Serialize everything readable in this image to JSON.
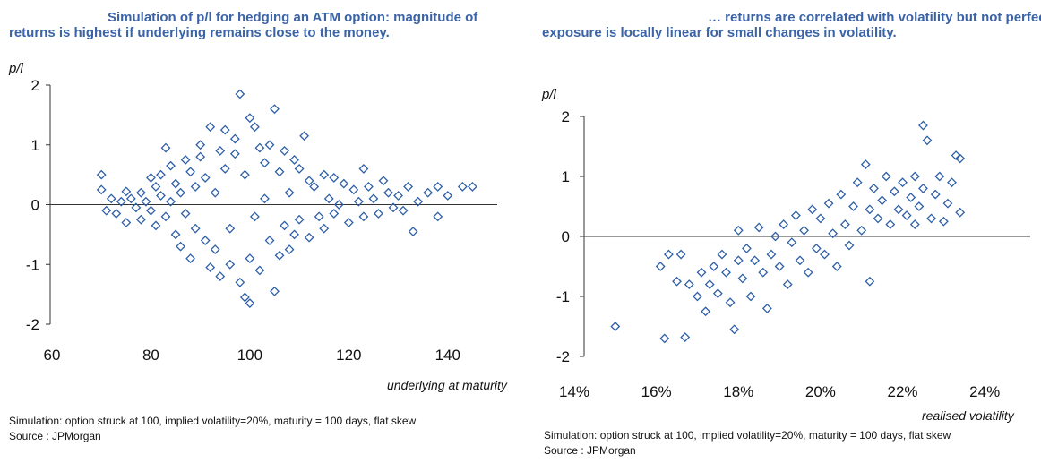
{
  "colors": {
    "title": "#3a63a8",
    "marker": "#2e5fa7",
    "axis": "#333333"
  },
  "panels": [
    {
      "title_line1": "Simulation of p/l for hedging an ATM option: magnitude of",
      "title_line2": "returns is highest if underlying remains close to the money.",
      "note_line1": "Simulation: option struck at 100, implied volatility=20%, maturity = 100 days, flat skew",
      "note_line2": "Source : JPMorgan"
    },
    {
      "title_line1": "… returns are correlated with volatility but not perfectly,",
      "title_line2": "exposure is locally linear for small changes in volatility.",
      "note_line1": "Simulation: option struck at 100, implied volatility=20%, maturity = 100 days, flat skew",
      "note_line2": "Source : JPMorgan"
    }
  ],
  "chart_data": [
    {
      "type": "scatter",
      "title": "Simulation of p/l for hedging an ATM option: magnitude of returns is highest if underlying remains close to the money.",
      "xlabel": "underlying at maturity",
      "ylabel": "p/l",
      "xlim": [
        60,
        150
      ],
      "ylim": [
        -2,
        2
      ],
      "xticks": [
        "60",
        "80",
        "100",
        "120",
        "140"
      ],
      "yticks": [
        "2",
        "1",
        "0",
        "-1",
        "-2"
      ],
      "marker": "hollow-diamond",
      "points": [
        [
          70,
          0.5
        ],
        [
          70,
          0.25
        ],
        [
          71,
          -0.1
        ],
        [
          72,
          0.1
        ],
        [
          73,
          -0.15
        ],
        [
          74,
          0.05
        ],
        [
          75,
          0.22
        ],
        [
          75,
          -0.3
        ],
        [
          76,
          0.1
        ],
        [
          77,
          -0.05
        ],
        [
          78,
          0.2
        ],
        [
          78,
          -0.25
        ],
        [
          79,
          0.05
        ],
        [
          80,
          0.45
        ],
        [
          80,
          -0.1
        ],
        [
          81,
          0.3
        ],
        [
          81,
          -0.35
        ],
        [
          82,
          0.15
        ],
        [
          82,
          0.5
        ],
        [
          83,
          -0.2
        ],
        [
          83,
          0.95
        ],
        [
          84,
          0.05
        ],
        [
          84,
          0.65
        ],
        [
          85,
          -0.5
        ],
        [
          85,
          0.35
        ],
        [
          86,
          0.2
        ],
        [
          86,
          -0.7
        ],
        [
          87,
          0.75
        ],
        [
          87,
          -0.15
        ],
        [
          88,
          0.55
        ],
        [
          88,
          -0.9
        ],
        [
          89,
          0.3
        ],
        [
          89,
          -0.4
        ],
        [
          90,
          0.8
        ],
        [
          90,
          1.0
        ],
        [
          91,
          -0.6
        ],
        [
          91,
          0.45
        ],
        [
          92,
          -1.05
        ],
        [
          92,
          1.3
        ],
        [
          93,
          0.2
        ],
        [
          93,
          -0.75
        ],
        [
          94,
          0.9
        ],
        [
          94,
          -1.2
        ],
        [
          95,
          0.6
        ],
        [
          95,
          1.25
        ],
        [
          96,
          -0.4
        ],
        [
          96,
          -1.0
        ],
        [
          97,
          0.85
        ],
        [
          97,
          1.1
        ],
        [
          98,
          1.85
        ],
        [
          98,
          -1.3
        ],
        [
          99,
          -1.55
        ],
        [
          99,
          0.5
        ],
        [
          100,
          -1.65
        ],
        [
          100,
          1.45
        ],
        [
          100,
          -0.9
        ],
        [
          101,
          1.3
        ],
        [
          101,
          -0.2
        ],
        [
          102,
          0.95
        ],
        [
          102,
          -1.1
        ],
        [
          103,
          0.7
        ],
        [
          103,
          0.1
        ],
        [
          104,
          -0.6
        ],
        [
          104,
          1.0
        ],
        [
          105,
          1.6
        ],
        [
          105,
          -1.45
        ],
        [
          106,
          -0.85
        ],
        [
          106,
          0.55
        ],
        [
          107,
          0.9
        ],
        [
          107,
          -0.35
        ],
        [
          108,
          0.2
        ],
        [
          108,
          -0.75
        ],
        [
          109,
          0.75
        ],
        [
          109,
          -0.5
        ],
        [
          110,
          0.6
        ],
        [
          110,
          -0.25
        ],
        [
          111,
          1.15
        ],
        [
          112,
          0.4
        ],
        [
          112,
          -0.55
        ],
        [
          113,
          0.3
        ],
        [
          114,
          -0.2
        ],
        [
          115,
          0.5
        ],
        [
          115,
          -0.4
        ],
        [
          116,
          0.1
        ],
        [
          117,
          0.45
        ],
        [
          117,
          -0.15
        ],
        [
          118,
          0.0
        ],
        [
          119,
          0.35
        ],
        [
          120,
          -0.3
        ],
        [
          121,
          0.25
        ],
        [
          122,
          0.05
        ],
        [
          123,
          0.6
        ],
        [
          123,
          -0.2
        ],
        [
          124,
          0.3
        ],
        [
          125,
          0.1
        ],
        [
          126,
          -0.15
        ],
        [
          127,
          0.4
        ],
        [
          128,
          0.2
        ],
        [
          129,
          -0.05
        ],
        [
          130,
          0.15
        ],
        [
          131,
          -0.1
        ],
        [
          132,
          0.3
        ],
        [
          133,
          -0.45
        ],
        [
          134,
          0.05
        ],
        [
          136,
          0.2
        ],
        [
          138,
          0.3
        ],
        [
          138,
          -0.2
        ],
        [
          140,
          0.15
        ],
        [
          143,
          0.3
        ],
        [
          145,
          0.3
        ]
      ]
    },
    {
      "type": "scatter",
      "title": "… returns are correlated with volatility but not perfectly, exposure is locally linear for small changes in volatility.",
      "xlabel": "realised volatility",
      "ylabel": "p/l",
      "xlim": [
        14,
        25
      ],
      "ylim": [
        -2,
        2
      ],
      "xticks": [
        "14%",
        "16%",
        "18%",
        "20%",
        "22%",
        "24%"
      ],
      "yticks": [
        "2",
        "1",
        "0",
        "-1",
        "-2"
      ],
      "marker": "hollow-diamond",
      "points": [
        [
          15.0,
          -1.5
        ],
        [
          16.2,
          -1.7
        ],
        [
          16.7,
          -1.68
        ],
        [
          16.1,
          -0.5
        ],
        [
          16.3,
          -0.3
        ],
        [
          16.5,
          -0.75
        ],
        [
          16.6,
          -0.3
        ],
        [
          16.8,
          -0.8
        ],
        [
          17.0,
          -1.0
        ],
        [
          17.1,
          -0.6
        ],
        [
          17.2,
          -1.25
        ],
        [
          17.3,
          -0.8
        ],
        [
          17.4,
          -0.5
        ],
        [
          17.5,
          -0.95
        ],
        [
          17.6,
          -0.3
        ],
        [
          17.7,
          -0.6
        ],
        [
          17.8,
          -1.1
        ],
        [
          17.9,
          -1.55
        ],
        [
          18.0,
          0.1
        ],
        [
          18.0,
          -0.4
        ],
        [
          18.1,
          -0.7
        ],
        [
          18.2,
          -0.2
        ],
        [
          18.3,
          -1.0
        ],
        [
          18.4,
          -0.4
        ],
        [
          18.5,
          0.15
        ],
        [
          18.6,
          -0.6
        ],
        [
          18.7,
          -1.2
        ],
        [
          18.8,
          -0.3
        ],
        [
          18.9,
          0.0
        ],
        [
          19.0,
          -0.5
        ],
        [
          19.1,
          0.2
        ],
        [
          19.2,
          -0.8
        ],
        [
          19.3,
          -0.1
        ],
        [
          19.4,
          0.35
        ],
        [
          19.5,
          -0.4
        ],
        [
          19.6,
          0.1
        ],
        [
          19.7,
          -0.6
        ],
        [
          19.8,
          0.45
        ],
        [
          19.9,
          -0.2
        ],
        [
          20.0,
          0.3
        ],
        [
          20.1,
          -0.3
        ],
        [
          20.2,
          0.55
        ],
        [
          20.3,
          0.05
        ],
        [
          20.4,
          -0.5
        ],
        [
          20.5,
          0.7
        ],
        [
          20.6,
          0.2
        ],
        [
          20.7,
          -0.15
        ],
        [
          20.8,
          0.5
        ],
        [
          20.9,
          0.9
        ],
        [
          21.0,
          0.1
        ],
        [
          21.1,
          1.2
        ],
        [
          21.2,
          -0.75
        ],
        [
          21.2,
          0.45
        ],
        [
          21.3,
          0.8
        ],
        [
          21.4,
          0.3
        ],
        [
          21.5,
          0.6
        ],
        [
          21.6,
          1.0
        ],
        [
          21.7,
          0.2
        ],
        [
          21.8,
          0.75
        ],
        [
          21.9,
          0.45
        ],
        [
          22.0,
          0.9
        ],
        [
          22.1,
          0.35
        ],
        [
          22.2,
          0.65
        ],
        [
          22.3,
          1.0
        ],
        [
          22.3,
          0.2
        ],
        [
          22.4,
          0.5
        ],
        [
          22.5,
          0.8
        ],
        [
          22.6,
          1.6
        ],
        [
          22.5,
          1.85
        ],
        [
          22.7,
          0.3
        ],
        [
          22.8,
          0.7
        ],
        [
          22.9,
          1.0
        ],
        [
          23.0,
          0.25
        ],
        [
          23.1,
          0.55
        ],
        [
          23.2,
          0.9
        ],
        [
          23.3,
          1.35
        ],
        [
          23.4,
          0.4
        ],
        [
          23.4,
          1.3
        ]
      ]
    }
  ]
}
